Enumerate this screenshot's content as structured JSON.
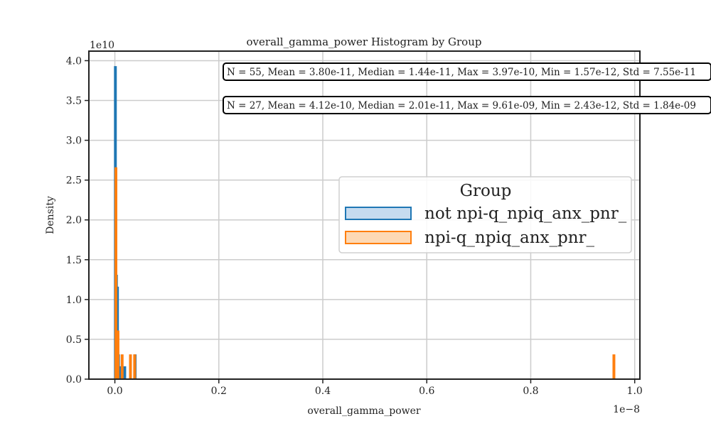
{
  "chart_data": {
    "type": "histogram",
    "title": "overall_gamma_power Histogram by Group",
    "xlabel": "overall_gamma_power",
    "ylabel": "Density",
    "x_multiplier_label": "1e−8",
    "y_multiplier_label": "1e10",
    "x_unit_scale": 1e-08,
    "y_unit_scale": 10000000000.0,
    "xlim": [
      -0.05,
      1.01
    ],
    "ylim": [
      0,
      4.12
    ],
    "xticks": [
      0.0,
      0.2,
      0.4,
      0.6,
      0.8,
      1.0
    ],
    "xtick_labels": [
      "0.0",
      "0.2",
      "0.4",
      "0.6",
      "0.8",
      "1.0"
    ],
    "yticks": [
      0.0,
      0.5,
      1.0,
      1.5,
      2.0,
      2.5,
      3.0,
      3.5,
      4.0
    ],
    "ytick_labels": [
      "0.0",
      "0.5",
      "1.0",
      "1.5",
      "2.0",
      "2.5",
      "3.0",
      "3.5",
      "4.0"
    ],
    "grid": true,
    "legend": {
      "title": "Group",
      "placement": "center-right",
      "entries": [
        {
          "label": "not npi-q_npiq_anx_pnr_",
          "color": "#1f77b4",
          "fill": "#c6dbef"
        },
        {
          "label": "npi-q_npiq_anx_pnr_",
          "color": "#ff7f0e",
          "fill": "#fdd9b5"
        }
      ]
    },
    "series": [
      {
        "name": "not npi-q_npiq_anx_pnr_",
        "color": "#1f77b4",
        "bins": [
          {
            "x0": 0.0,
            "x1": 0.002,
            "density": 3.92
          },
          {
            "x0": 0.002,
            "x1": 0.004,
            "density": 1.3
          },
          {
            "x0": 0.004,
            "x1": 0.006,
            "density": 1.15
          },
          {
            "x0": 0.006,
            "x1": 0.008,
            "density": 0.3
          },
          {
            "x0": 0.008,
            "x1": 0.01,
            "density": 0.15
          },
          {
            "x0": 0.018,
            "x1": 0.02,
            "density": 0.15
          },
          {
            "x0": 0.038,
            "x1": 0.04,
            "density": 0.3
          }
        ]
      },
      {
        "name": "npi-q_npiq_anx_pnr_",
        "color": "#ff7f0e",
        "bins": [
          {
            "x0": 0.001,
            "x1": 0.003,
            "density": 2.65
          },
          {
            "x0": 0.003,
            "x1": 0.005,
            "density": 0.6
          },
          {
            "x0": 0.005,
            "x1": 0.007,
            "density": 0.6
          },
          {
            "x0": 0.013,
            "x1": 0.015,
            "density": 0.3
          },
          {
            "x0": 0.029,
            "x1": 0.031,
            "density": 0.3
          },
          {
            "x0": 0.037,
            "x1": 0.039,
            "density": 0.3
          },
          {
            "x0": 0.959,
            "x1": 0.961,
            "density": 0.3
          }
        ]
      }
    ],
    "annotations": [
      "N = 55, Mean = 3.80e-11, Median = 1.44e-11, Max = 3.97e-10, Min = 1.57e-12, Std = 7.55e-11",
      "N = 27, Mean = 4.12e-10, Median = 2.01e-11, Max = 9.61e-09, Min = 2.43e-12, Std = 1.84e-09"
    ]
  }
}
